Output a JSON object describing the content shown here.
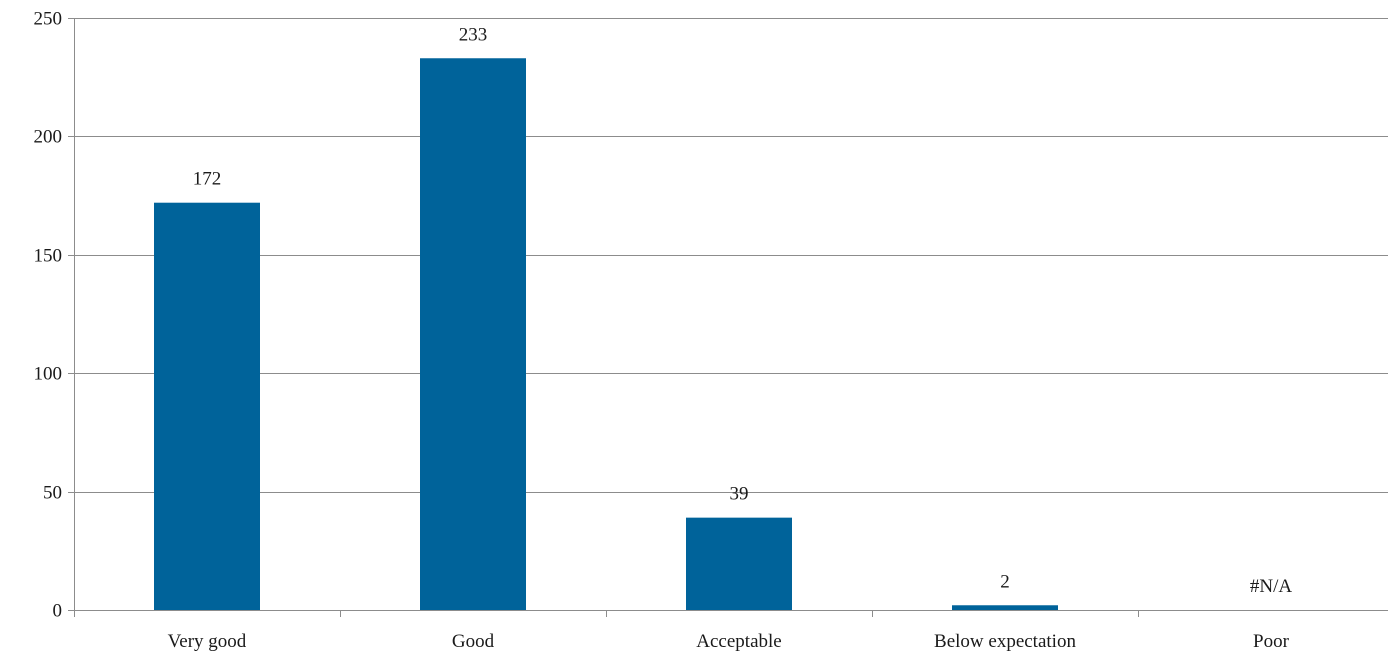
{
  "chart_data": {
    "type": "bar",
    "categories": [
      "Very good",
      "Good",
      "Acceptable",
      "Below expectation",
      "Poor"
    ],
    "values": [
      172,
      233,
      39,
      2,
      null
    ],
    "data_labels": [
      "172",
      "233",
      "39",
      "2",
      "#N/A"
    ],
    "title": "",
    "xlabel": "",
    "ylabel": "",
    "ylim": [
      0,
      250
    ],
    "yticks": [
      0,
      50,
      100,
      150,
      200,
      250
    ],
    "grid": true,
    "legend": "none",
    "bar_color": "#00639a",
    "gridline_color": "#8c8c8c"
  }
}
